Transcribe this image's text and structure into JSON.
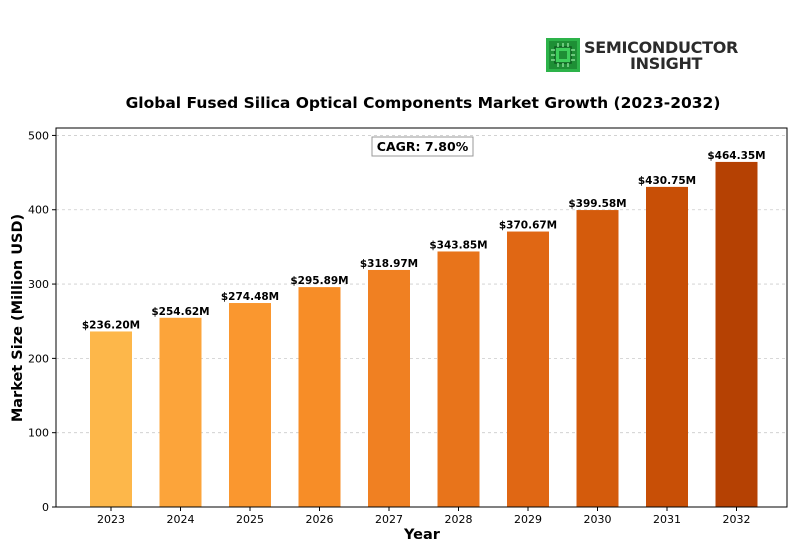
{
  "logo": {
    "line1": "SEMICONDUCTOR",
    "line2": "INSIGHT",
    "icon": "chip-icon",
    "icon_color": "#2db34a"
  },
  "chart_data": {
    "type": "bar",
    "title": "Global Fused Silica Optical Components Market Growth (2023-2032)",
    "xlabel": "Year",
    "ylabel": "Market Size (Million USD)",
    "categories": [
      "2023",
      "2024",
      "2025",
      "2026",
      "2027",
      "2028",
      "2029",
      "2030",
      "2031",
      "2032"
    ],
    "values": [
      236.2,
      254.62,
      274.48,
      295.89,
      318.97,
      343.85,
      370.67,
      399.58,
      430.75,
      464.35
    ],
    "data_labels": [
      "$236.20M",
      "$254.62M",
      "$274.48M",
      "$295.89M",
      "$318.97M",
      "$343.85M",
      "$370.67M",
      "$399.58M",
      "$430.75M",
      "$464.35M"
    ],
    "ylim": [
      0,
      510
    ],
    "yticks": [
      0,
      100,
      200,
      300,
      400,
      500
    ],
    "grid": "y-dashed",
    "annotation": "CAGR: 7.80%",
    "colors": [
      "#fdb74a",
      "#fca43a",
      "#fa972f",
      "#f78d27",
      "#f08022",
      "#e8741b",
      "#e06714",
      "#d45b0c",
      "#c84f06",
      "#b54103"
    ]
  }
}
